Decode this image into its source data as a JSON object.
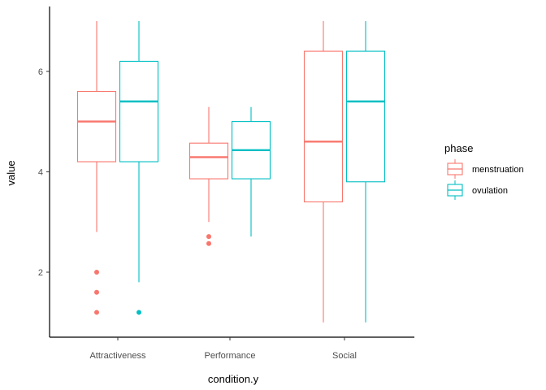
{
  "chart_data": {
    "type": "boxplot",
    "xlabel": "condition.y",
    "ylabel": "value",
    "categories": [
      "Attractiveness",
      "Performance",
      "Social"
    ],
    "yticks": [
      2,
      4,
      6
    ],
    "ylim": [
      0.6,
      7.3
    ],
    "grid": false,
    "legend": {
      "title": "phase",
      "position": "right"
    },
    "series": [
      {
        "name": "menstruation",
        "color": "#F8766D",
        "boxes": [
          {
            "category": "Attractiveness",
            "whisker_low": 2.8,
            "q1": 4.2,
            "median": 5.0,
            "q3": 5.6,
            "whisker_high": 7.0,
            "outliers": [
              2.0,
              1.6,
              1.2
            ]
          },
          {
            "category": "Performance",
            "whisker_low": 3.0,
            "q1": 3.86,
            "median": 4.29,
            "q3": 4.57,
            "whisker_high": 5.29,
            "outliers": [
              2.71,
              2.57
            ]
          },
          {
            "category": "Social",
            "whisker_low": 1.0,
            "q1": 3.4,
            "median": 4.6,
            "q3": 6.4,
            "whisker_high": 7.0,
            "outliers": []
          }
        ]
      },
      {
        "name": "ovulation",
        "color": "#00BFC4",
        "boxes": [
          {
            "category": "Attractiveness",
            "whisker_low": 1.8,
            "q1": 4.2,
            "median": 5.4,
            "q3": 6.2,
            "whisker_high": 7.0,
            "outliers": [
              1.2
            ]
          },
          {
            "category": "Performance",
            "whisker_low": 2.71,
            "q1": 3.86,
            "median": 4.43,
            "q3": 5.0,
            "whisker_high": 5.29,
            "outliers": []
          },
          {
            "category": "Social",
            "whisker_low": 1.0,
            "q1": 3.8,
            "median": 5.4,
            "q3": 6.4,
            "whisker_high": 7.0,
            "outliers": []
          }
        ]
      }
    ]
  }
}
